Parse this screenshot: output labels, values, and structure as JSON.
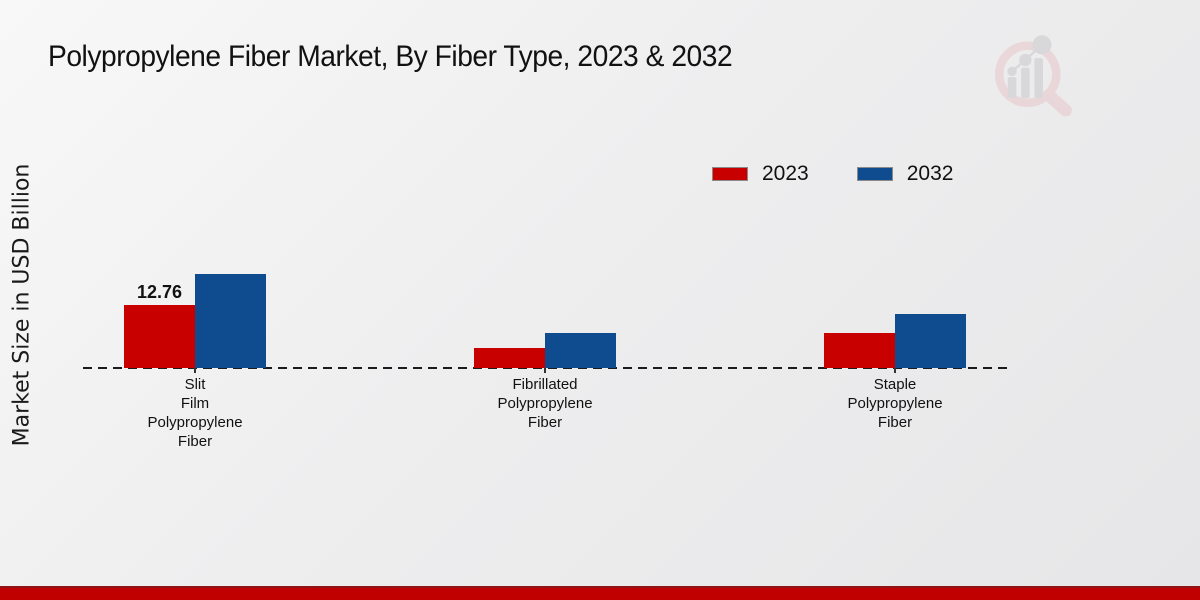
{
  "page": {
    "footer_accent_color": "#c00000"
  },
  "chart_data": {
    "type": "bar",
    "title": "Polypropylene Fiber Market, By Fiber Type, 2023 & 2032",
    "ylabel": "Market Size in USD Billion",
    "xlabel": "",
    "legend_position": "top-right",
    "baseline_style": "dashed",
    "grid": false,
    "ylim": [
      0,
      20
    ],
    "categories": [
      {
        "lines": [
          "Slit",
          "Film",
          "Polypropylene",
          "Fiber"
        ]
      },
      {
        "lines": [
          "Fibrillated",
          "Polypropylene",
          "Fiber"
        ]
      },
      {
        "lines": [
          "Staple",
          "Polypropylene",
          "Fiber"
        ]
      }
    ],
    "series": [
      {
        "name": "2023",
        "color": "#c90000",
        "values": [
          12.76,
          4.1,
          7.1
        ]
      },
      {
        "name": "2032",
        "color": "#0f4c8f",
        "values": [
          19.0,
          7.1,
          10.9
        ]
      }
    ],
    "value_labels": [
      {
        "series_index": 0,
        "category_index": 0,
        "text": "12.76"
      }
    ]
  }
}
